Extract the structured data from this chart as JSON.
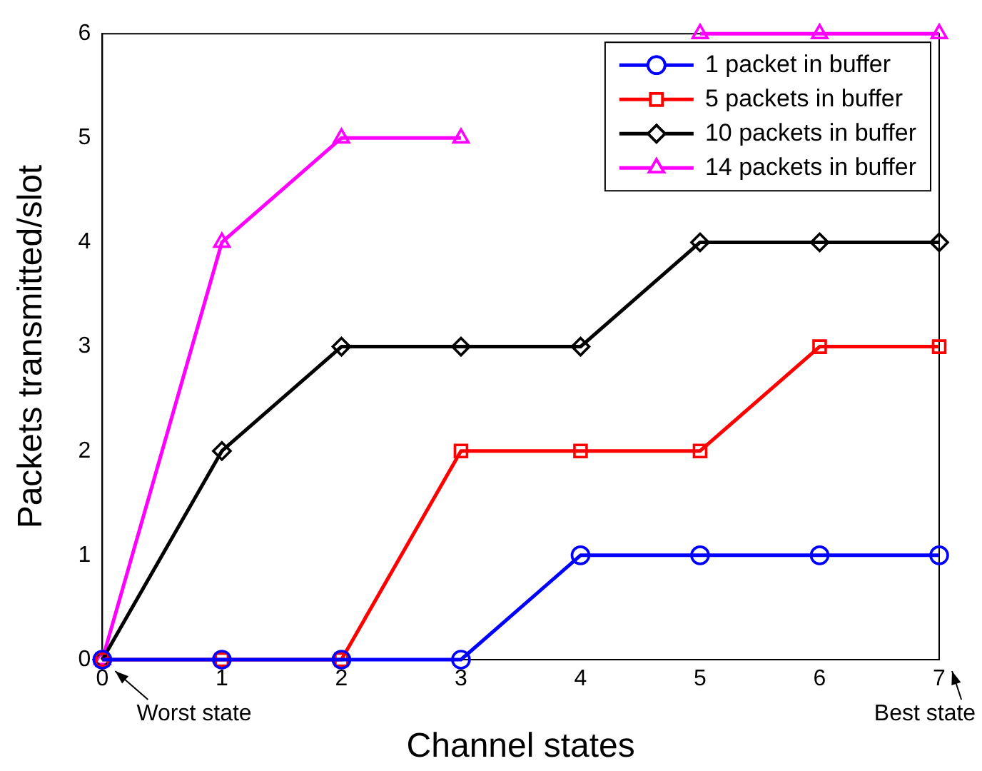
{
  "chart_data": {
    "type": "line",
    "xlabel": "Channel states",
    "ylabel": "Packets transmitted/slot",
    "x": [
      0,
      1,
      2,
      3,
      4,
      5,
      6,
      7
    ],
    "xlim": [
      0,
      7
    ],
    "xticks": [
      0,
      1,
      2,
      3,
      4,
      5,
      6,
      7
    ],
    "ylim": [
      0,
      6
    ],
    "yticks": [
      0,
      1,
      2,
      3,
      4,
      5,
      6
    ],
    "series": [
      {
        "name": "1 packet in buffer",
        "color": "#0000ff",
        "marker": "circle",
        "values": [
          0,
          0,
          0,
          0,
          1,
          1,
          1,
          1
        ]
      },
      {
        "name": "5 packets in buffer",
        "color": "#ff0000",
        "marker": "square",
        "values": [
          0,
          0,
          0,
          2,
          2,
          2,
          3,
          3
        ]
      },
      {
        "name": "10 packets in buffer",
        "color": "#000000",
        "marker": "diamond",
        "values": [
          0,
          2,
          3,
          3,
          3,
          4,
          4,
          4
        ]
      },
      {
        "name": "14 packets in buffer",
        "color": "#ff00ff",
        "marker": "triangle",
        "values": [
          0,
          4,
          5,
          5,
          null,
          6,
          6,
          6
        ]
      }
    ],
    "annotations": [
      "Worst state",
      "Best state"
    ],
    "legend": "top right",
    "grid": false,
    "line_style": "solid"
  }
}
